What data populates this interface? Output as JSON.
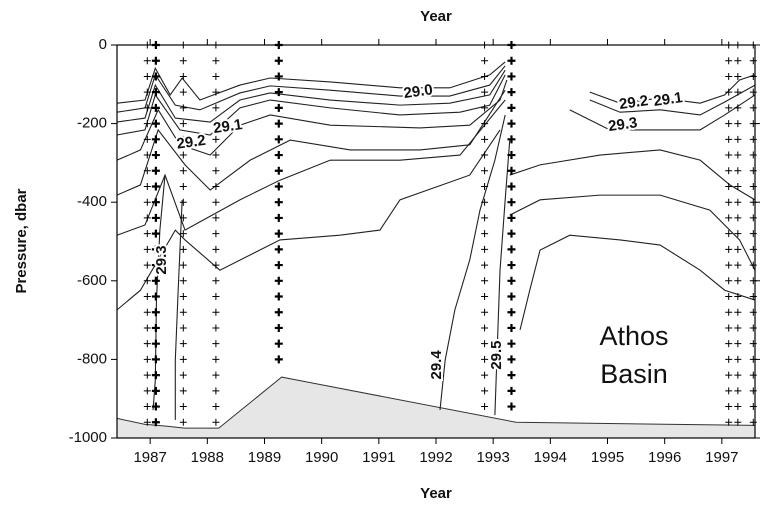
{
  "chart_data": {
    "type": "contour",
    "title": "Year",
    "xlabel": "Year",
    "ylabel": "Pressure, dbar",
    "annotation": [
      "Athos",
      "Basin"
    ],
    "xlim": [
      1986.42,
      1997.58
    ],
    "ylim": [
      -1000,
      0
    ],
    "xticks": [
      1987,
      1988,
      1989,
      1990,
      1991,
      1992,
      1993,
      1994,
      1995,
      1996,
      1997
    ],
    "yticks": [
      0,
      -200,
      -400,
      -600,
      -800,
      -1000
    ],
    "line_color": "#222222",
    "bottom": {
      "color": "#e6e6e6",
      "x": [
        1986.42,
        1986.9,
        1987.3,
        1987.6,
        1988.2,
        1989.3,
        1993.4,
        1997.58
      ],
      "y": [
        -950,
        -965,
        -970,
        -975,
        -975,
        -845,
        -960,
        -968
      ]
    },
    "contours": [
      {
        "x": [
          1986.42,
          1986.91,
          1987.09,
          1987.35,
          1987.56,
          1987.87,
          1988.57,
          1989.1,
          1990.15,
          1991.37,
          1992.24,
          1992.94,
          1993.21
        ],
        "y": [
          -148,
          -140,
          -59,
          -127,
          -84,
          -140,
          -102,
          -84,
          -94,
          -109,
          -109,
          -76,
          -43
        ]
      },
      {
        "x": [
          1986.42,
          1986.91,
          1987.09,
          1987.44,
          1987.87,
          1988.57,
          1989.1,
          1990.15,
          1991.37,
          1992.24,
          1992.94,
          1993.21
        ],
        "y": [
          -171,
          -160,
          -76,
          -153,
          -165,
          -122,
          -104,
          -115,
          -130,
          -130,
          -102,
          -53
        ]
      },
      {
        "x": [
          1986.42,
          1986.91,
          1987.09,
          1987.44,
          1988.05,
          1988.57,
          1989.1,
          1990.15,
          1991.37,
          1992.24,
          1992.94,
          1993.21
        ],
        "y": [
          -196,
          -186,
          -102,
          -186,
          -196,
          -140,
          -122,
          -140,
          -153,
          -148,
          -127,
          -64
        ]
      },
      {
        "x": [
          1986.42,
          1986.91,
          1987.09,
          1987.52,
          1988.05,
          1988.57,
          1989.1,
          1990.15,
          1991.37,
          1992.42,
          1992.94,
          1993.21
        ],
        "y": [
          -229,
          -216,
          -127,
          -216,
          -229,
          -160,
          -140,
          -160,
          -178,
          -171,
          -153,
          -76
        ]
      },
      {
        "x": [
          1986.42,
          1986.83,
          1987.14,
          1987.52,
          1988.05,
          1988.57,
          1989.1,
          1990.15,
          1991.72,
          1992.59,
          1993.12,
          1993.24
        ],
        "y": [
          -293,
          -267,
          -165,
          -254,
          -280,
          -204,
          -178,
          -204,
          -211,
          -204,
          -140,
          -89
        ]
      },
      {
        "x": [
          1986.42,
          1986.83,
          1987.14,
          1987.61,
          1988.05,
          1988.75,
          1989.45,
          1990.5,
          1991.72,
          1992.59,
          1993.21
        ],
        "y": [
          -382,
          -356,
          -216,
          -305,
          -369,
          -293,
          -242,
          -267,
          -267,
          -254,
          -115
        ]
      },
      {
        "x": [
          1986.42,
          1986.91,
          1987.26,
          1987.61,
          1987.87,
          1988.57,
          1989.27,
          1990.15,
          1991.37,
          1992.42,
          1993.21
        ],
        "y": [
          -484,
          -458,
          -331,
          -471,
          -450,
          -394,
          -344,
          -293,
          -293,
          -280,
          -140
        ]
      },
      {
        "x": [
          1986.42,
          1986.83,
          1987.44,
          1987.61,
          1988.22,
          1989.27,
          1990.32,
          1991.02,
          1991.37,
          1992.59,
          1993.12
        ],
        "y": [
          -674,
          -624,
          -471,
          -496,
          -573,
          -496,
          -484,
          -471,
          -394,
          -331,
          -216
        ]
      },
      {
        "x": [
          1987.26,
          1987.17,
          1987.11,
          1987.09,
          1987.05
        ],
        "y": [
          -331,
          -471,
          -649,
          -853,
          -929
        ]
      },
      {
        "x": [
          1987.56,
          1987.49,
          1987.44,
          1987.44
        ],
        "y": [
          -394,
          -624,
          -802,
          -954
        ]
      },
      {
        "x": [
          1993.21,
          1993.03,
          1992.77,
          1992.59,
          1992.33,
          1992.16,
          1992.07
        ],
        "y": [
          -178,
          -293,
          -420,
          -547,
          -674,
          -802,
          -929
        ]
      },
      {
        "x": [
          1993.29,
          1993.21,
          1993.12,
          1993.07,
          1993.03
        ],
        "y": [
          -242,
          -394,
          -573,
          -776,
          -942
        ]
      },
      {
        "x": [
          1994.69,
          1995.22,
          1995.92,
          1996.62,
          1997.05,
          1997.31,
          1997.58
        ],
        "y": [
          -120,
          -148,
          -135,
          -148,
          -127,
          -89,
          -76
        ]
      },
      {
        "x": [
          1994.69,
          1995.22,
          1995.92,
          1996.62,
          1997.05,
          1997.58
        ],
        "y": [
          -140,
          -171,
          -165,
          -178,
          -145,
          -102
        ]
      },
      {
        "x": [
          1994.34,
          1995.04,
          1995.74,
          1996.62,
          1997.05,
          1997.58
        ],
        "y": [
          -165,
          -216,
          -216,
          -216,
          -178,
          -127
        ]
      },
      {
        "x": [
          1993.29,
          1993.82,
          1994.87,
          1995.92,
          1996.62,
          1997.14,
          1997.58
        ],
        "y": [
          -331,
          -305,
          -280,
          -267,
          -293,
          -356,
          -394
        ]
      },
      {
        "x": [
          1993.29,
          1993.82,
          1994.87,
          1995.92,
          1996.79,
          1997.31,
          1997.58
        ],
        "y": [
          -433,
          -394,
          -382,
          -382,
          -420,
          -496,
          -573
        ]
      },
      {
        "x": [
          1993.47,
          1993.64,
          1993.82,
          1994.34,
          1995.22,
          1995.92,
          1996.62,
          1997.05,
          1997.58
        ],
        "y": [
          -725,
          -624,
          -522,
          -484,
          -496,
          -509,
          -573,
          -624,
          -649
        ]
      }
    ],
    "contour_labels": [
      {
        "value": 29,
        "value_label": "29.0",
        "x": 1991.69,
        "y": -120
      },
      {
        "value": 29.1,
        "x": 1988.36,
        "y": -209
      },
      {
        "value": 29.2,
        "x": 1987.72,
        "y": -249
      },
      {
        "value": 29.3,
        "x": 1987.21,
        "y": -547,
        "vertical": true
      },
      {
        "value": 29.4,
        "x": 1992.02,
        "y": -814,
        "vertical": true
      },
      {
        "value": 29.5,
        "x": 1993.07,
        "y": -789,
        "vertical": true
      },
      {
        "value": 29.2,
        "x": 1995.46,
        "y": -148
      },
      {
        "value": 29.1,
        "x": 1996.06,
        "y": -140
      },
      {
        "value": 29.3,
        "x": 1995.27,
        "y": -204
      }
    ],
    "sample_pressures": [
      0,
      -40,
      -80,
      -120,
      -160,
      -200,
      -240,
      -280,
      -320,
      -360,
      -400,
      -440,
      -480,
      -520,
      -560,
      -600,
      -640,
      -680,
      -720,
      -760,
      -800,
      -840,
      -880,
      -920,
      -960
    ],
    "stations": [
      {
        "x": 1986.95,
        "max_depth": -960
      },
      {
        "x": 1987.1,
        "max_depth": -960,
        "bold": true
      },
      {
        "x": 1987.58,
        "max_depth": -960
      },
      {
        "x": 1988.15,
        "max_depth": -960
      },
      {
        "x": 1989.25,
        "max_depth": -800,
        "bold": true
      },
      {
        "x": 1992.85,
        "max_depth": -940
      },
      {
        "x": 1993.32,
        "max_depth": -940,
        "bold": true
      },
      {
        "x": 1997.12,
        "max_depth": -960
      },
      {
        "x": 1997.28,
        "max_depth": -960
      },
      {
        "x": 1997.55,
        "max_depth": -960
      }
    ]
  }
}
